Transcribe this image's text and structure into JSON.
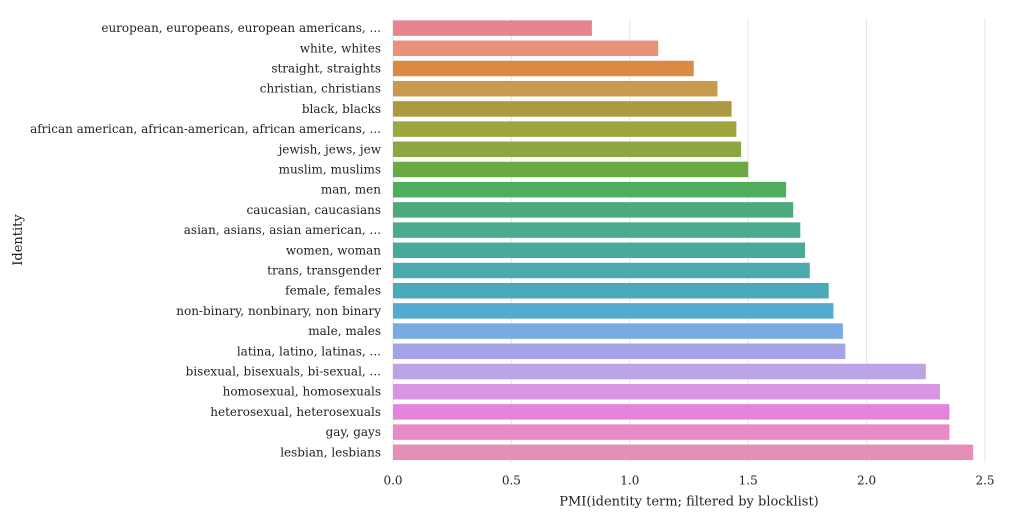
{
  "chart_data": {
    "type": "bar",
    "orientation": "horizontal",
    "title": "",
    "xlabel": "PMI(identity term; filtered by blocklist)",
    "ylabel": "Identity",
    "xlim": [
      0,
      2.5
    ],
    "xticks": [
      0.0,
      0.5,
      1.0,
      1.5,
      2.0,
      2.5
    ],
    "xtick_labels": [
      "0.0",
      "0.5",
      "1.0",
      "1.5",
      "2.0",
      "2.5"
    ],
    "grid": "vertical",
    "categories": [
      "european, europeans, european americans, ...",
      "white, whites",
      "straight, straights",
      "christian, christians",
      "black, blacks",
      "african american, african-american, african americans, ...",
      "jewish, jews, jew",
      "muslim, muslims",
      "man, men",
      "caucasian, caucasians",
      "asian, asians, asian american, ...",
      "women, woman",
      "trans, transgender",
      "female, females",
      "non-binary, nonbinary, non binary",
      "male, males",
      "latina, latino, latinas, ...",
      "bisexual, bisexuals, bi-sexual, ...",
      "homosexual, homosexuals",
      "heterosexual, heterosexuals",
      "gay, gays",
      "lesbian, lesbians"
    ],
    "values": [
      0.84,
      1.12,
      1.27,
      1.37,
      1.43,
      1.45,
      1.47,
      1.5,
      1.66,
      1.69,
      1.72,
      1.74,
      1.76,
      1.84,
      1.86,
      1.9,
      1.91,
      2.25,
      2.31,
      2.35,
      2.35,
      2.45
    ],
    "colors": [
      "#e8848f",
      "#e8927a",
      "#db8a45",
      "#c99a4c",
      "#ad9a40",
      "#9da63f",
      "#8ea640",
      "#6aaa45",
      "#4fae5c",
      "#4daa7c",
      "#4aab8e",
      "#49a99a",
      "#4aaaac",
      "#4aaabb",
      "#52abd0",
      "#7aabe0",
      "#a5a3e7",
      "#bba3e6",
      "#d895e4",
      "#e383dd",
      "#e68bc7",
      "#e58fb8"
    ]
  }
}
